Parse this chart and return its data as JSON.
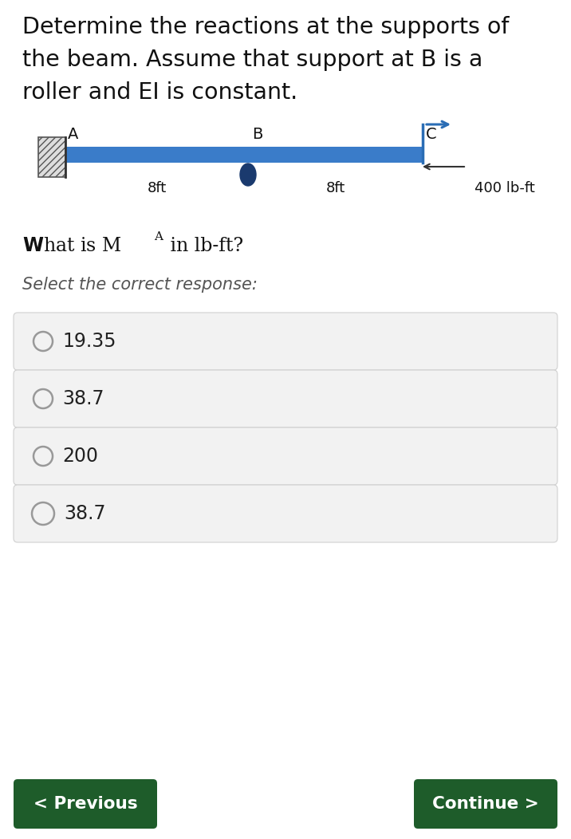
{
  "title_text": "Determine the reactions at the supports of\nthe beam. Assume that support at B is a\nroller and EI is constant.",
  "select_text": "Select the correct response:",
  "options": [
    "19.35",
    "38.7",
    "200",
    "38.7"
  ],
  "btn_prev": "< Previous",
  "btn_next": "Continue >",
  "btn_color": "#1e5c2a",
  "bg_color": "#ffffff",
  "option_bg": "#f2f2f2",
  "beam_color": "#3a7cc9",
  "label_A": "A",
  "label_B": "B",
  "label_C": "C",
  "dim_left": "8ft",
  "dim_right": "8ft",
  "moment_label": "400 lb-ft",
  "wall_hatch_color": "#aaaaaa",
  "roller_color": "#1a3a6e",
  "text_color": "#111111",
  "radio_color": "#aaaaaa"
}
